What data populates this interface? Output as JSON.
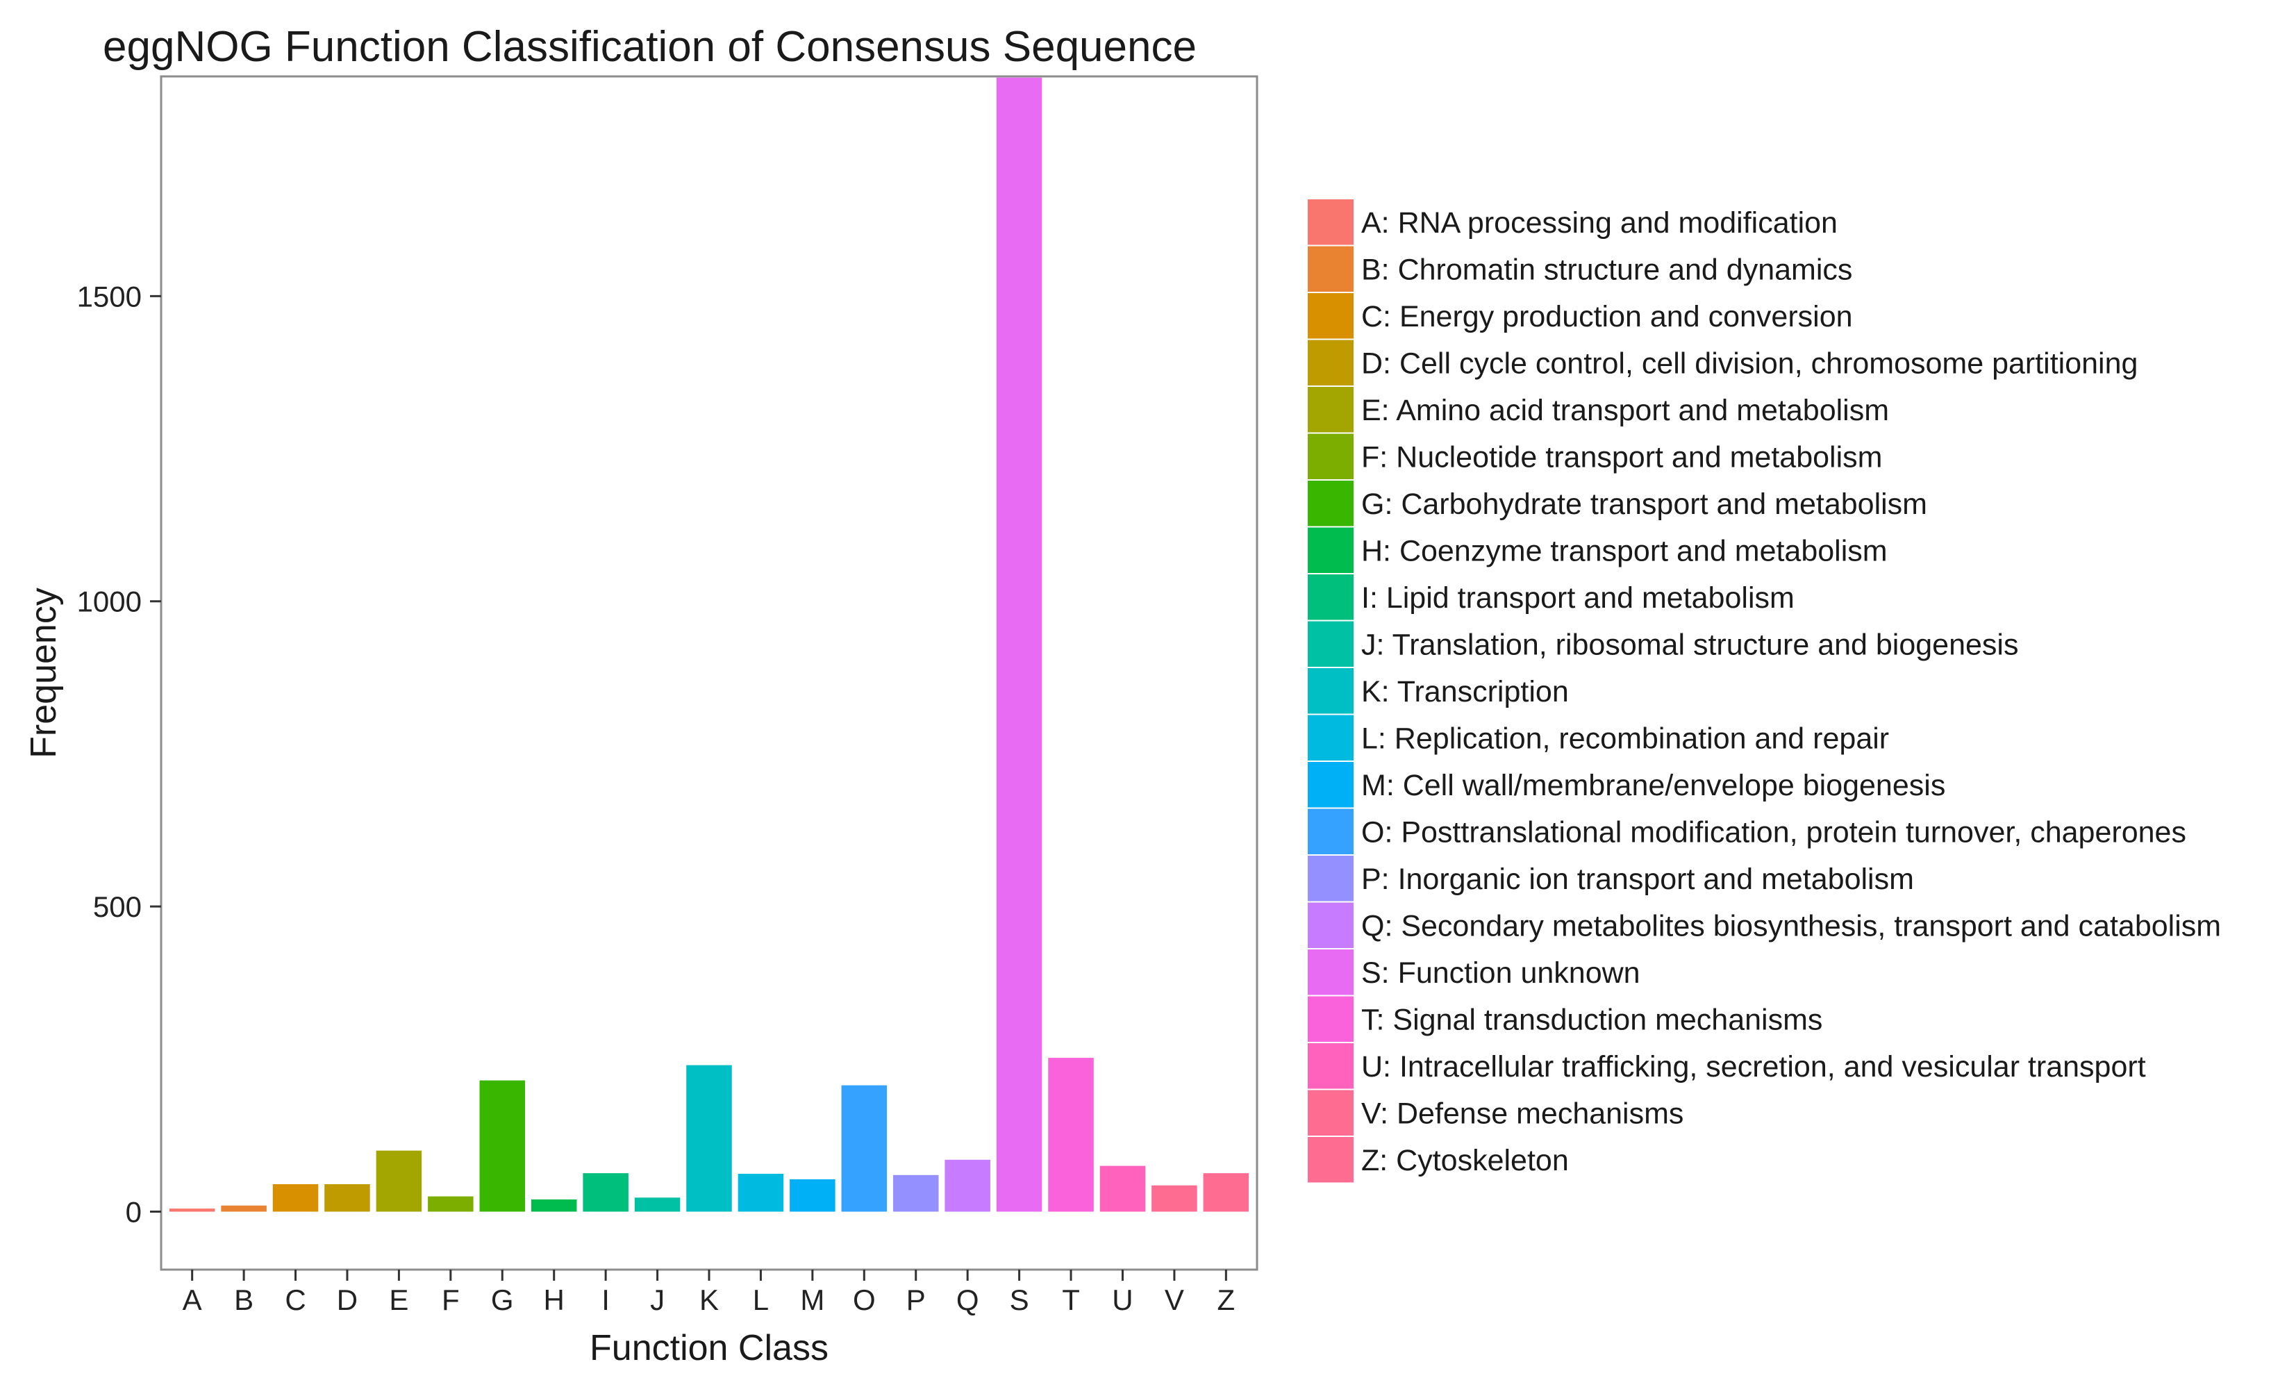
{
  "chart_data": {
    "type": "bar",
    "title": "eggNOG Function Classification of Consensus Sequence",
    "xlabel": "Function Class",
    "ylabel": "Frequency",
    "ylim": [
      -95,
      1860
    ],
    "yticks": [
      0,
      500,
      1000,
      1500
    ],
    "grid": false,
    "legend_position": "right",
    "categories": [
      "A",
      "B",
      "C",
      "D",
      "E",
      "F",
      "G",
      "H",
      "I",
      "J",
      "K",
      "L",
      "M",
      "O",
      "P",
      "Q",
      "S",
      "T",
      "U",
      "V",
      "Z"
    ],
    "values": [
      5,
      10,
      45,
      45,
      100,
      25,
      215,
      20,
      63,
      23,
      240,
      62,
      53,
      207,
      60,
      85,
      1858,
      252,
      75,
      43,
      63
    ],
    "colors": [
      "#F8766D",
      "#EA8331",
      "#D89000",
      "#C09B00",
      "#A3A500",
      "#7CAE00",
      "#39B600",
      "#00BB4E",
      "#00BF7D",
      "#00C1A3",
      "#00BFC4",
      "#00BAE0",
      "#00B0F6",
      "#35A2FF",
      "#9590FF",
      "#C77CFF",
      "#E76BF3",
      "#FA62DB",
      "#FF62BC",
      "#FF6C91",
      "#FF6C91"
    ],
    "legend": [
      "A: RNA processing and modification",
      "B: Chromatin structure and dynamics",
      "C: Energy production and conversion",
      "D: Cell cycle control, cell division, chromosome partitioning",
      "E: Amino acid transport and metabolism",
      "F: Nucleotide transport and metabolism",
      "G: Carbohydrate transport and metabolism",
      "H: Coenzyme transport and metabolism",
      "I: Lipid transport and metabolism",
      "J: Translation, ribosomal structure and biogenesis",
      "K: Transcription",
      "L: Replication, recombination and repair",
      "M: Cell wall/membrane/envelope biogenesis",
      "O: Posttranslational modification, protein turnover, chaperones",
      "P: Inorganic ion transport and metabolism",
      "Q: Secondary metabolites biosynthesis, transport and catabolism",
      "S: Function unknown",
      "T: Signal transduction mechanisms",
      "U: Intracellular trafficking, secretion, and vesicular transport",
      "V: Defense mechanisms",
      "Z: Cytoskeleton"
    ]
  }
}
